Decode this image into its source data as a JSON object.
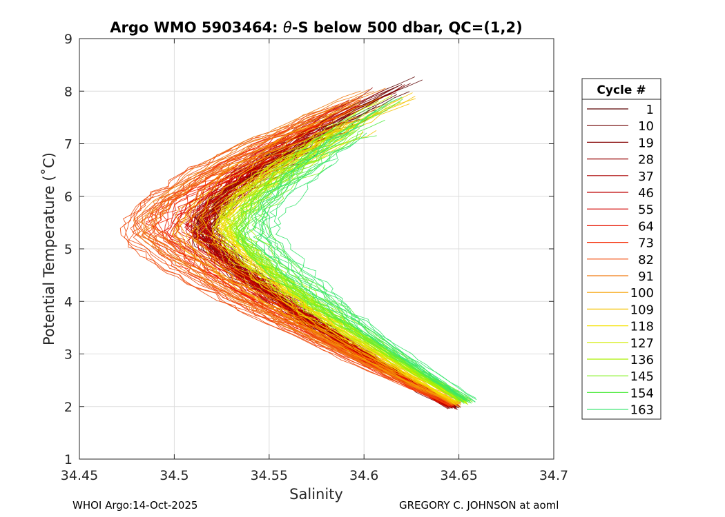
{
  "chart_data": {
    "type": "line",
    "title": "Argo WMO 5903464: θ-S below 500 dbar,  QC=(1,2)",
    "title_parts": {
      "prefix": "Argo WMO 5903464: ",
      "theta": "θ",
      "suffix": "-S below 500 dbar,  QC=(1,2)"
    },
    "xlabel": "Salinity",
    "ylabel": "Potential Temperature (˚C)",
    "xlim": [
      34.45,
      34.7
    ],
    "ylim": [
      1,
      9
    ],
    "xticks": [
      34.45,
      34.5,
      34.55,
      34.6,
      34.65,
      34.7
    ],
    "xtick_labels": [
      "34.45",
      "34.5",
      "34.55",
      "34.6",
      "34.65",
      "34.7"
    ],
    "yticks": [
      1,
      2,
      3,
      4,
      5,
      6,
      7,
      8,
      9
    ],
    "ytick_labels": [
      "1",
      "2",
      "3",
      "4",
      "5",
      "6",
      "7",
      "8",
      "9"
    ],
    "grid": true,
    "legend_title": "Cycle #",
    "legend_position": "outside-right",
    "series": [
      {
        "name": "1",
        "color": "#5a0000",
        "min_s": 34.515,
        "deep_s": 34.648,
        "deep_t": 1.97,
        "top_s": 34.632,
        "top_t": 8.35
      },
      {
        "name": "10",
        "color": "#6e0000",
        "min_s": 34.516,
        "deep_s": 34.647,
        "deep_t": 1.99,
        "top_s": 34.628,
        "top_t": 8.25
      },
      {
        "name": "19",
        "color": "#820000",
        "min_s": 34.517,
        "deep_s": 34.647,
        "deep_t": 2.0,
        "top_s": 34.62,
        "top_t": 8.15
      },
      {
        "name": "28",
        "color": "#960000",
        "min_s": 34.515,
        "deep_s": 34.646,
        "deep_t": 2.01,
        "top_s": 34.612,
        "top_t": 8.05
      },
      {
        "name": "37",
        "color": "#aa0000",
        "min_s": 34.514,
        "deep_s": 34.646,
        "deep_t": 2.02,
        "top_s": 34.605,
        "top_t": 7.95
      },
      {
        "name": "46",
        "color": "#be0000",
        "min_s": 34.513,
        "deep_s": 34.646,
        "deep_t": 2.02,
        "top_s": 34.6,
        "top_t": 7.9
      },
      {
        "name": "55",
        "color": "#d20500",
        "min_s": 34.51,
        "deep_s": 34.647,
        "deep_t": 2.02,
        "top_s": 34.598,
        "top_t": 7.85
      },
      {
        "name": "64",
        "color": "#e61400",
        "min_s": 34.5,
        "deep_s": 34.647,
        "deep_t": 2.03,
        "top_s": 34.596,
        "top_t": 7.8
      },
      {
        "name": "73",
        "color": "#f52800",
        "min_s": 34.49,
        "deep_s": 34.648,
        "deep_t": 2.04,
        "top_s": 34.6,
        "top_t": 7.9
      },
      {
        "name": "82",
        "color": "#f04a0a",
        "min_s": 34.475,
        "deep_s": 34.648,
        "deep_t": 2.05,
        "top_s": 34.602,
        "top_t": 8.0
      },
      {
        "name": "91",
        "color": "#f07a10",
        "min_s": 34.485,
        "deep_s": 34.649,
        "deep_t": 2.05,
        "top_s": 34.605,
        "top_t": 8.05
      },
      {
        "name": "100",
        "color": "#f5a000",
        "min_s": 34.505,
        "deep_s": 34.649,
        "deep_t": 2.06,
        "top_s": 34.62,
        "top_t": 8.2
      },
      {
        "name": "109",
        "color": "#f5c300",
        "min_s": 34.52,
        "deep_s": 34.65,
        "deep_t": 2.07,
        "top_s": 34.636,
        "top_t": 8.25
      },
      {
        "name": "118",
        "color": "#f5e100",
        "min_s": 34.525,
        "deep_s": 34.651,
        "deep_t": 2.07,
        "top_s": 34.625,
        "top_t": 8.1
      },
      {
        "name": "127",
        "color": "#d2eb00",
        "min_s": 34.528,
        "deep_s": 34.652,
        "deep_t": 2.08,
        "top_s": 34.615,
        "top_t": 7.95
      },
      {
        "name": "136",
        "color": "#aaf000",
        "min_s": 34.532,
        "deep_s": 34.653,
        "deep_t": 2.09,
        "top_s": 34.61,
        "top_t": 7.85
      },
      {
        "name": "145",
        "color": "#82f01e",
        "min_s": 34.535,
        "deep_s": 34.654,
        "deep_t": 2.1,
        "top_s": 34.615,
        "top_t": 7.8
      },
      {
        "name": "154",
        "color": "#55eb46",
        "min_s": 34.54,
        "deep_s": 34.655,
        "deep_t": 2.11,
        "top_s": 34.618,
        "top_t": 7.85
      },
      {
        "name": "163",
        "color": "#37e66e",
        "min_s": 34.545,
        "deep_s": 34.656,
        "deep_t": 2.12,
        "top_s": 34.62,
        "top_t": 7.9
      }
    ]
  },
  "footer": {
    "left": "WHOI Argo:14-Oct-2025",
    "right": "GREGORY C. JOHNSON at aoml"
  }
}
